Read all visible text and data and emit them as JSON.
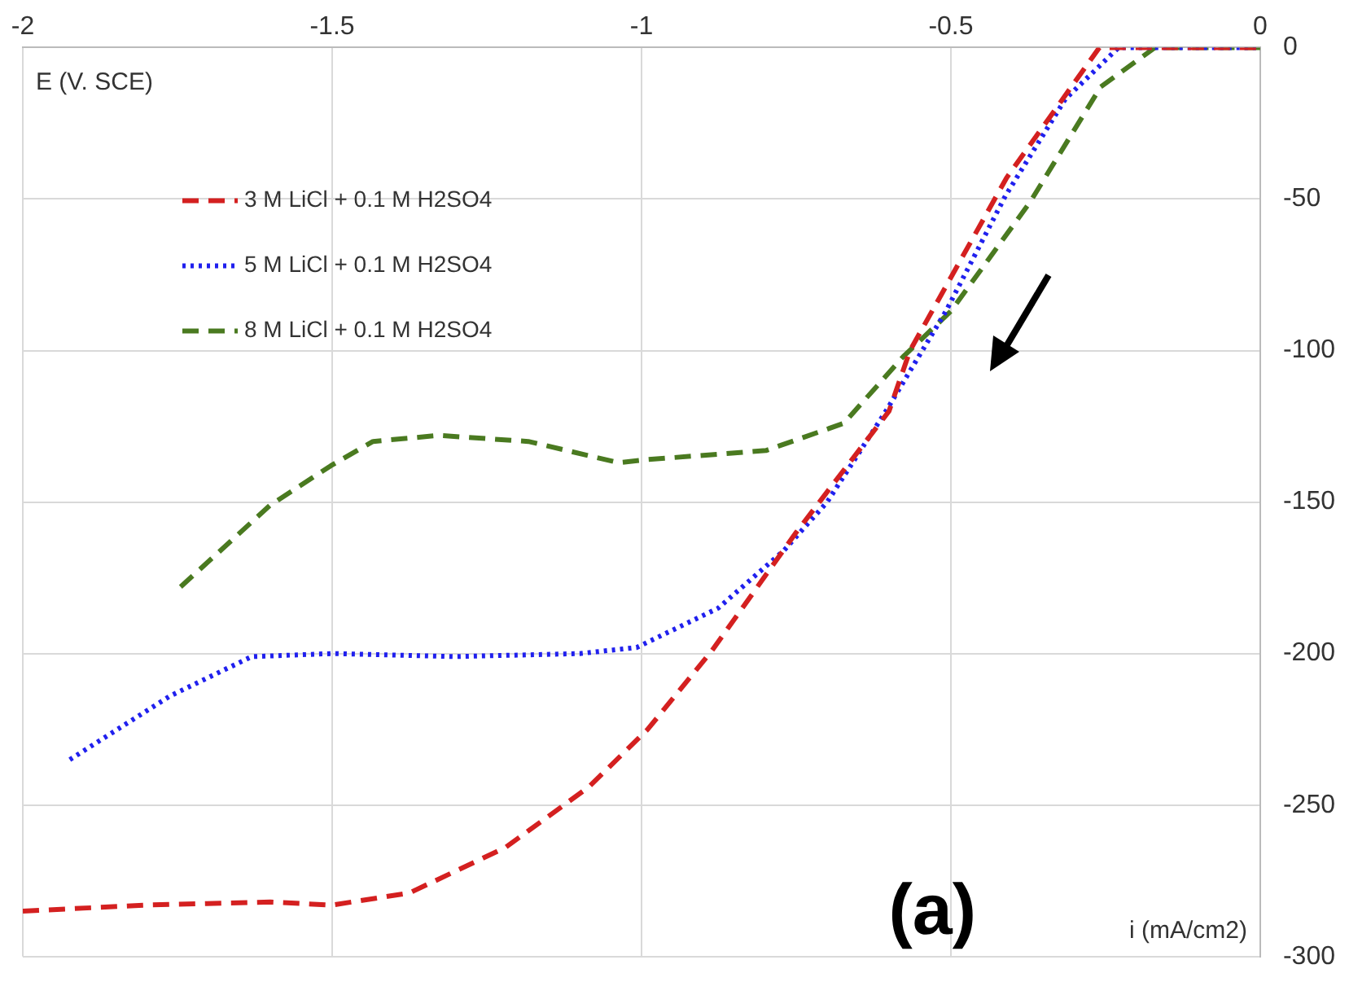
{
  "chart_data": {
    "type": "line",
    "xlabel": "i (mA/cm2)",
    "ylabel": "E (V. SCE)",
    "annotations": [
      "(a)"
    ],
    "xlim": [
      -2,
      0
    ],
    "xticks": [
      -2,
      -1.5,
      -1,
      -0.5,
      0
    ],
    "ylim": [
      -300,
      0
    ],
    "yticks": [
      -300,
      -250,
      -200,
      -150,
      -100,
      -50,
      0
    ],
    "grid": true,
    "legend": "top left",
    "marker": "none",
    "series": [
      {
        "name": "3 M LiCl + 0.1 M H2SO4",
        "color": "#d42020",
        "line_style": "dashed",
        "x": [
          -2,
          -1.8,
          -1.6,
          -1.5,
          -1.375,
          -1.22,
          -1.085,
          -0.99,
          -0.886,
          -0.75,
          -0.6,
          -0.566,
          -0.41,
          -0.26,
          -0.1,
          0
        ],
        "values": [
          -285,
          -283,
          -282,
          -283,
          -279,
          -264,
          -244,
          -225,
          -199,
          -160,
          -120,
          -100,
          -43,
          0,
          0,
          0
        ]
      },
      {
        "name": "5 M LiCl + 0.1 M H2SO4",
        "color": "#2020ee",
        "line_style": "dotted",
        "x": [
          -1.924,
          -1.762,
          -1.63,
          -1.5,
          -1.3,
          -1.1,
          -1.008,
          -0.876,
          -0.77,
          -0.7,
          -0.605,
          -0.508,
          -0.412,
          -0.315,
          -0.229,
          -0.1,
          0
        ],
        "values": [
          -235,
          -214,
          -201,
          -200,
          -201,
          -200,
          -198,
          -185,
          -166,
          -150,
          -120,
          -87,
          -49,
          -17,
          0,
          0,
          0
        ]
      },
      {
        "name": "8 M LiCl + 0.1 M H2SO4",
        "color": "#4a7a20",
        "line_style": "dashed",
        "x": [
          -1.745,
          -1.6,
          -1.502,
          -1.434,
          -1.328,
          -1.183,
          -1.037,
          -0.992,
          -0.799,
          -0.673,
          -0.577,
          -0.5,
          -0.372,
          -0.258,
          -0.17,
          0
        ],
        "values": [
          -178,
          -151,
          -138,
          -130,
          -128,
          -130,
          -137,
          -136,
          -133,
          -124,
          -102,
          -87,
          -51,
          -13,
          0,
          0
        ]
      }
    ]
  }
}
